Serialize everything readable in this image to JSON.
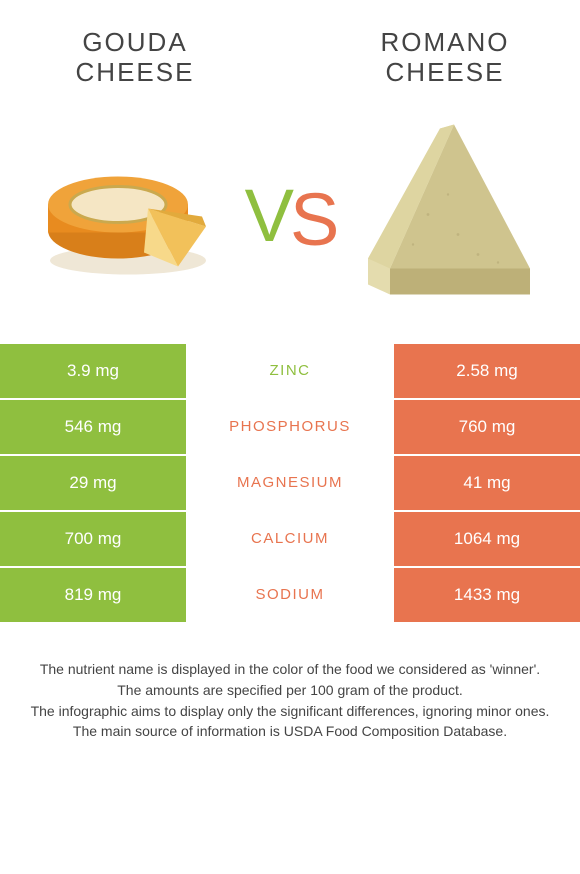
{
  "colors": {
    "left_bg": "#8fbf3f",
    "right_bg": "#e8744f",
    "text": "#444444",
    "row_border": "#ffffff"
  },
  "typography": {
    "title_fontsize": 26,
    "title_letterspacing": 2,
    "vs_fontsize": 74,
    "cell_value_fontsize": 17,
    "cell_label_fontsize": 15,
    "footer_fontsize": 14
  },
  "left_item": {
    "title_line1": "GOUDA",
    "title_line2": "CHEESE"
  },
  "right_item": {
    "title_line1": "ROMANO",
    "title_line2": "CHEESE"
  },
  "vs_label": {
    "v": "V",
    "s": "S"
  },
  "rows": [
    {
      "left": "3.9 mg",
      "label": "ZINC",
      "right": "2.58 mg",
      "winner": "left"
    },
    {
      "left": "546 mg",
      "label": "PHOSPHORUS",
      "right": "760 mg",
      "winner": "right"
    },
    {
      "left": "29 mg",
      "label": "MAGNESIUM",
      "right": "41 mg",
      "winner": "right"
    },
    {
      "left": "700 mg",
      "label": "CALCIUM",
      "right": "1064 mg",
      "winner": "right"
    },
    {
      "left": "819 mg",
      "label": "SODIUM",
      "right": "1433 mg",
      "winner": "right"
    }
  ],
  "footer": {
    "line1": "The nutrient name is displayed in the color of the food we considered as 'winner'.",
    "line2": "The amounts are specified per 100 gram of the product.",
    "line3": "The infographic aims to display only the significant differences, ignoring minor ones.",
    "line4": "The main source of information is USDA Food Composition Database."
  },
  "images": {
    "left_alt": "gouda-cheese-wheel",
    "right_alt": "romano-cheese-wedge"
  }
}
